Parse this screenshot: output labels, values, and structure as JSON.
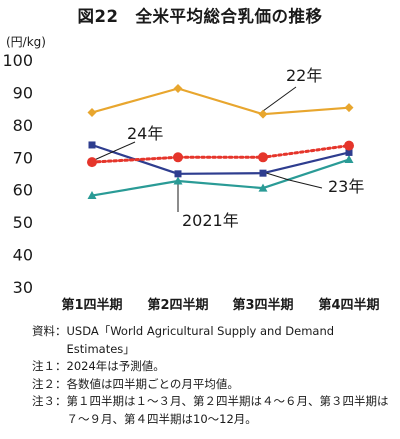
{
  "title": "図22　全米平均総合乳価の推移",
  "unit": "(円/kg)",
  "chart_data": {
    "type": "line",
    "categories": [
      "第1四半期",
      "第2四半期",
      "第3四半期",
      "第4四半期"
    ],
    "ylim": [
      30,
      100
    ],
    "yticks": [
      30,
      40,
      50,
      60,
      70,
      80,
      90,
      100
    ],
    "grid": false,
    "series": [
      {
        "name": "22年",
        "values": [
          83.8,
          91.2,
          83.3,
          85.3
        ],
        "color": "#e8a62e",
        "marker": "diamond",
        "dash": false
      },
      {
        "name": "2021年",
        "values": [
          58.2,
          62.7,
          60.5,
          69.3
        ],
        "color": "#2a9b96",
        "marker": "triangle",
        "dash": false
      },
      {
        "name": "24年",
        "values": [
          73.8,
          64.9,
          65.1,
          71.5
        ],
        "color": "#2e3d8f",
        "marker": "square",
        "dash": false
      },
      {
        "name": "23年",
        "values": [
          68.5,
          70.0,
          70.0,
          73.6
        ],
        "color": "#e5352b",
        "marker": "circle",
        "dash": true
      }
    ]
  },
  "notes": [
    {
      "key": "資料：",
      "text": "USDA「World Agricultural Supply and Demand Estimates」"
    },
    {
      "key": "注１：",
      "text": "2024年は予測値。"
    },
    {
      "key": "注２：",
      "text": "各数値は四半期ごとの月平均値。"
    },
    {
      "key": "注３：",
      "text": "第１四半期は１～３月、第２四半期は４～６月、第３四半期は７～９月、第４四半期は10～12月。"
    }
  ]
}
